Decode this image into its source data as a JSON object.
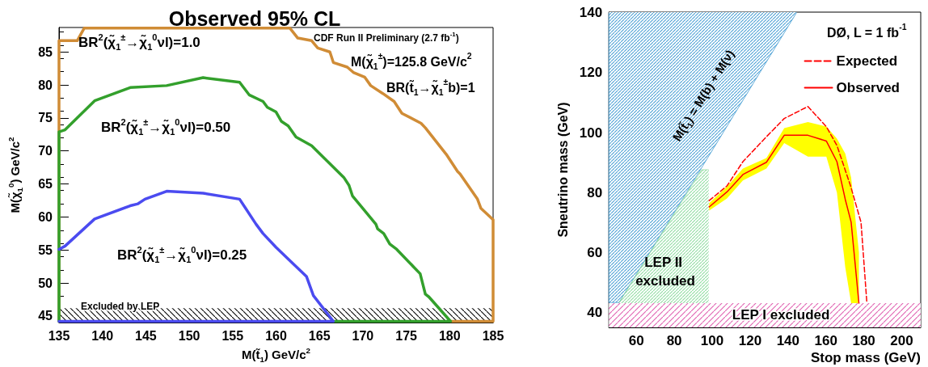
{
  "chart_data": [
    {
      "type": "line",
      "title": "Observed 95% CL",
      "xlabel": "M(t̃$_{1}$) GeV/c$^{2}$",
      "ylabel": "M(χ̃$_{1}$$^{0}$) GeV/c$^{2}$",
      "xlim": [
        135,
        185
      ],
      "ylim": [
        44,
        88.7
      ],
      "xticks": [
        135,
        140,
        145,
        150,
        155,
        160,
        165,
        170,
        175,
        180,
        185
      ],
      "yticks": [
        45,
        50,
        55,
        60,
        65,
        70,
        75,
        80,
        85
      ],
      "grid": false,
      "legend": false,
      "marker": "none",
      "annotations": [
        "CDF Run II Preliminary (2.7 fb$^{-1}$)",
        "M(χ̃$_{1}$$^{±}$)=125.8 GeV/c$^{2}$",
        "BR(t̃$_{1}$→χ̃$_{1}$$^{±}$b)=1"
      ],
      "bands": [
        {
          "axis": "y",
          "from": 44,
          "to": 46.2,
          "label": "Excluded by LEP",
          "color": "#000000"
        }
      ],
      "series": [
        {
          "name": "BR$^{2}$(χ̃$_{1}$$^{±}$→χ̃$_{1}$$^{0}$νl)=1.0",
          "color": "#d08c36",
          "x": [
            135,
            135,
            137.1,
            137.9,
            161.6,
            162.5,
            164.1,
            164.8,
            166.2,
            166.6,
            168.2,
            168.9,
            170.2,
            170.9,
            172.3,
            173.6,
            174.5,
            176.7,
            177.2,
            179.6,
            180.9,
            181.2,
            183.2,
            183.6,
            185,
            185,
            180.1
          ],
          "values": [
            44.2,
            86.7,
            86.7,
            88.6,
            88.6,
            87.1,
            86.7,
            85.6,
            85,
            83.4,
            82.7,
            81.9,
            81.2,
            79.9,
            78.7,
            77.5,
            75.7,
            74.2,
            73.5,
            69.5,
            66.9,
            66.5,
            62.7,
            61.3,
            59.6,
            44.2,
            44.2
          ]
        },
        {
          "name": "BR$^{2}$(χ̃$_{1}$$^{±}$→χ̃$_{1}$$^{0}$νl)=0.50",
          "color": "#33a02c",
          "x": [
            135,
            135,
            135.7,
            139.1,
            143.2,
            147.4,
            151.6,
            155.8,
            156.9,
            158.5,
            159,
            160,
            160.6,
            161.4,
            162.3,
            164.1,
            167.8,
            168.4,
            168.8,
            171.5,
            171.7,
            172.4,
            173.1,
            173.9,
            176.6,
            177.2,
            177.6,
            180.1,
            166.6
          ],
          "values": [
            44.2,
            72.9,
            73.2,
            77.6,
            79.6,
            79.9,
            81.1,
            80.4,
            78.5,
            77.5,
            76.6,
            75.9,
            74.5,
            73.8,
            72.1,
            70.8,
            66,
            64.8,
            63.2,
            58.9,
            58.2,
            57.5,
            55.9,
            55.1,
            51.4,
            48.3,
            47.9,
            44.2,
            44.2
          ]
        },
        {
          "name": "BR$^{2}$(χ̃$_{1}$$^{±}$→χ̃$_{1}$$^{0}$νl)=0.25",
          "color": "#4b4bf0",
          "x": [
            135,
            135.7,
            139.1,
            143.2,
            144.1,
            144.9,
            147.4,
            151.6,
            155.8,
            157.7,
            158.5,
            160,
            163.5,
            164.3,
            166.6,
            135
          ],
          "values": [
            55.1,
            55.6,
            59.7,
            61.7,
            62,
            62.7,
            63.9,
            63.6,
            62.7,
            58.9,
            57.5,
            55.4,
            51,
            48.1,
            44.2,
            44.2
          ]
        }
      ]
    },
    {
      "type": "line",
      "xlabel": "Stop mass (GeV)",
      "ylabel": "Sneutrino mass (GeV)",
      "xlim": [
        45.5,
        210
      ],
      "ylim": [
        35,
        140.2
      ],
      "xticks": [
        60,
        80,
        100,
        120,
        140,
        160,
        180,
        200
      ],
      "yticks": [
        40,
        60,
        80,
        100,
        120,
        140
      ],
      "grid": false,
      "legend": "top right",
      "marker": "none",
      "annotations": [
        "DØ, L = 1 fb$^{-1}$",
        "M(t̃$_{1}$) = M(b) + M(ν)",
        "LEP II excluded"
      ],
      "bands": [
        {
          "axis": "y",
          "from": 35,
          "to": 43.1,
          "label": "LEP I excluded",
          "color": "#e060b0"
        }
      ],
      "series": [
        {
          "type": "area",
          "color": "#4a9fd4",
          "x": [
            45.5,
            45.5,
            50.9,
            144.5
          ],
          "values": [
            140,
            43.3,
            43.3,
            140
          ]
        },
        {
          "type": "area",
          "color": "#8fdca0",
          "x": [
            50.9,
            94.4,
            98.2
          ],
          "values": [
            43.3,
            87.6,
            87.6
          ]
        },
        {
          "name": "Expected",
          "color": "#ff0000",
          "line_style": "dashed",
          "x": [
            98.4,
            107.8,
            116.2,
            128.6,
            138,
            150.5,
            160.2,
            165.8,
            173,
            178.5,
            181.6
          ],
          "values": [
            77.3,
            82.2,
            90.3,
            98.6,
            104.7,
            108.7,
            102,
            95.7,
            82.2,
            70.1,
            43.1
          ]
        },
        {
          "name": "Observed",
          "color": "#ff0000",
          "line_style": "solid",
          "x": [
            98.4,
            107.8,
            116.2,
            128.6,
            138,
            150.5,
            160.2,
            165.8,
            170.2,
            173.3,
            177.4
          ],
          "values": [
            75.2,
            80.2,
            86,
            90.1,
            99.1,
            99.1,
            97.2,
            90.3,
            77.7,
            70.1,
            43.1
          ],
          "lower": [
            74,
            78,
            84,
            88,
            96.5,
            92,
            92,
            80,
            55,
            43.1,
            43.1
          ],
          "upper": [
            76.5,
            82,
            88,
            91.5,
            101.5,
            103.5,
            102,
            98,
            93,
            85,
            60
          ]
        }
      ]
    }
  ]
}
